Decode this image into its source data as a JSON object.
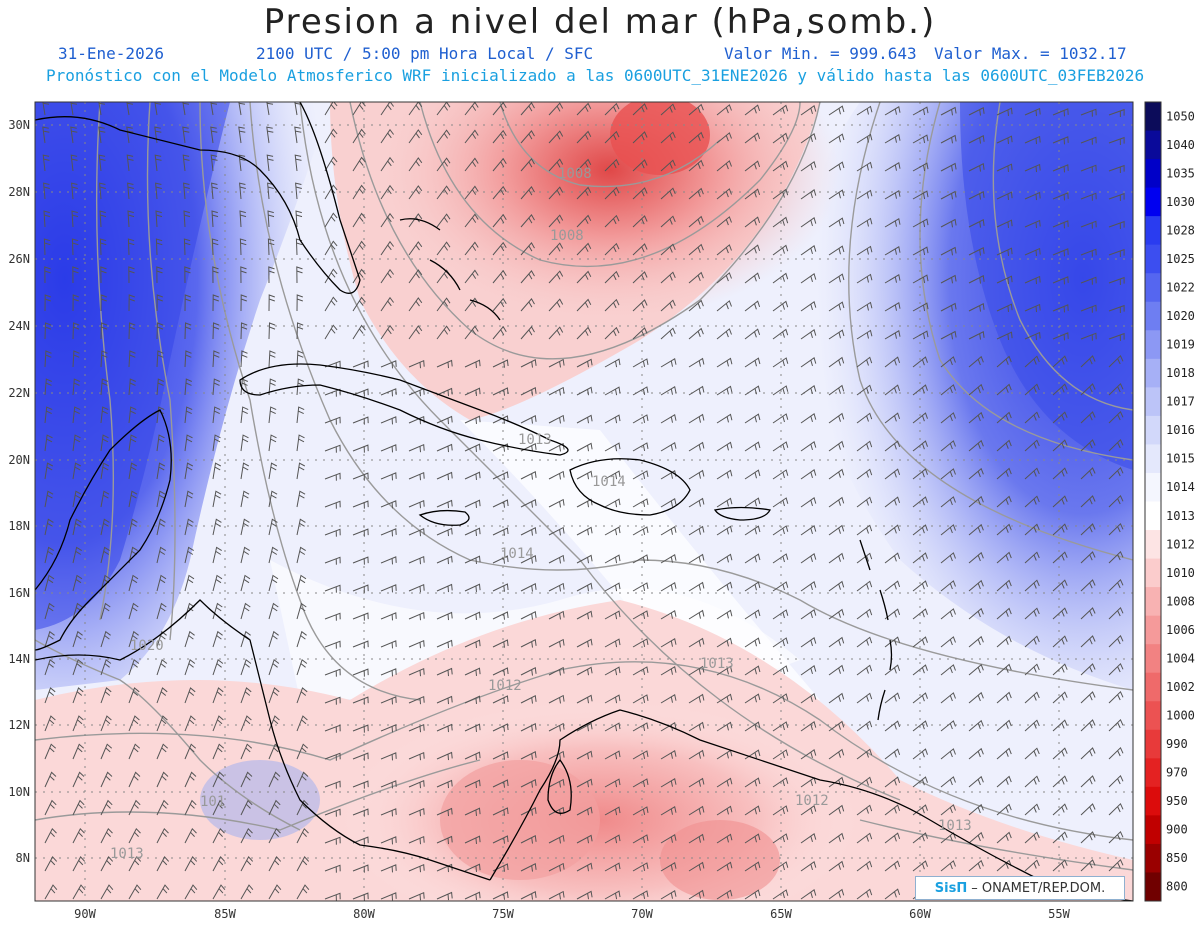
{
  "header": {
    "title": "Presion a nivel del mar (hPa,somb.)",
    "date": "31-Ene-2026",
    "time": "2100 UTC / 5:00 pm Hora Local / SFC",
    "valmin": "Valor Min. = 999.643",
    "valmax": "Valor Max. = 1032.17",
    "subtitle": "Pronóstico con el Modelo Atmosferico WRF inicializado a las 0600UTC_31ENE2026 y válido hasta las  0600UTC_03FEB2026"
  },
  "colors": {
    "low_red": "#e8403f",
    "mid_white": "#ffffff",
    "high_blue": "#1a2ee8",
    "coast": "#000000",
    "contour": "#9a9a9a",
    "barb": "#555555"
  },
  "axes": {
    "lat_labels": [
      "30N",
      "28N",
      "26N",
      "24N",
      "22N",
      "20N",
      "18N",
      "16N",
      "14N",
      "12N",
      "10N",
      "8N"
    ],
    "lon_labels": [
      "90W",
      "85W",
      "80W",
      "75W",
      "70W",
      "65W",
      "60W",
      "55W"
    ]
  },
  "colorbar": {
    "levels": [
      "1050",
      "1040",
      "1035",
      "1030",
      "1028",
      "1025",
      "1022",
      "1020",
      "1019",
      "1018",
      "1017",
      "1016",
      "1015",
      "1014",
      "1013",
      "1012",
      "1010",
      "1008",
      "1006",
      "1004",
      "1002",
      "1000",
      "990",
      "970",
      "950",
      "900",
      "850",
      "800"
    ],
    "colors": [
      "#0c0c5a",
      "#0a0a9a",
      "#0000c8",
      "#0000f0",
      "#2a3cf0",
      "#3c4ef0",
      "#5566f0",
      "#6e7ef2",
      "#8c98f4",
      "#a6b0f6",
      "#bcc4f8",
      "#d2d8fa",
      "#e4e8fc",
      "#f4f6fe",
      "#ffffff",
      "#fde4e4",
      "#fbcccc",
      "#f8b2b2",
      "#f59a9a",
      "#f28282",
      "#ef6a6a",
      "#ec5252",
      "#e83a3a",
      "#e42222",
      "#dc0c0c",
      "#c00000",
      "#9a0000",
      "#700000"
    ]
  },
  "isobar_labels": [
    {
      "text": "1008"
    },
    {
      "text": "1008"
    },
    {
      "text": "1013"
    },
    {
      "text": "1014"
    },
    {
      "text": "1014"
    },
    {
      "text": "1013"
    },
    {
      "text": "1012"
    },
    {
      "text": "1020"
    },
    {
      "text": "1012"
    },
    {
      "text": "1013"
    },
    {
      "text": "1013"
    },
    {
      "text": "101"
    }
  ],
  "credit": {
    "logo": "SisΠ",
    "text": "– ONAMET/REP.DOM."
  }
}
